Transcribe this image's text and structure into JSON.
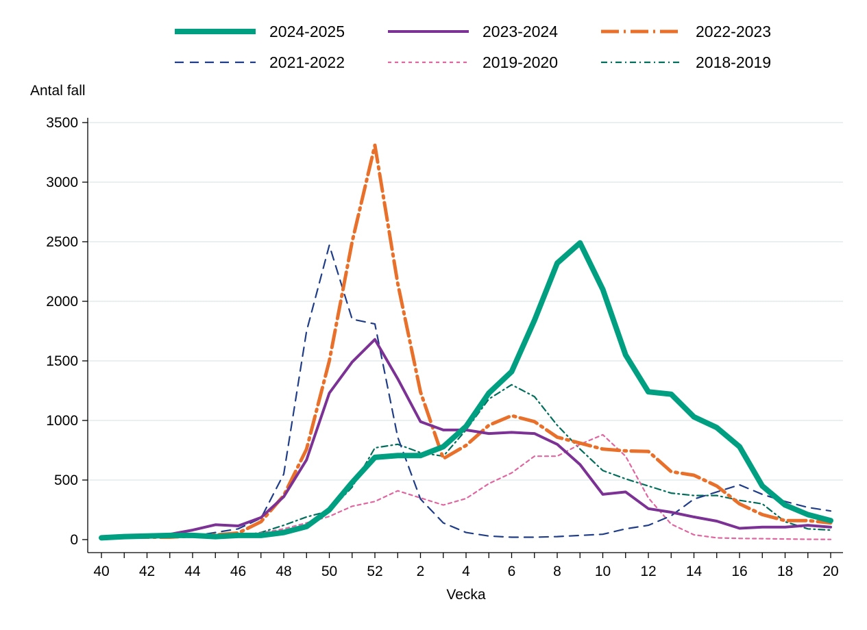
{
  "chart_data": {
    "type": "line",
    "xlabel": "Vecka",
    "ylabel": "Antal fall",
    "ylim": [
      0,
      3500
    ],
    "y_ticks": [
      0,
      500,
      1000,
      1500,
      2000,
      2500,
      3000,
      3500
    ],
    "grid": "horizontal",
    "legend_position": "top",
    "categories": [
      "40",
      "41",
      "42",
      "43",
      "44",
      "45",
      "46",
      "47",
      "48",
      "49",
      "50",
      "51",
      "52",
      "1",
      "2",
      "3",
      "4",
      "5",
      "6",
      "7",
      "8",
      "9",
      "10",
      "11",
      "12",
      "13",
      "14",
      "15",
      "16",
      "17",
      "18",
      "19",
      "20"
    ],
    "x_tick_labels": [
      "40",
      "42",
      "44",
      "46",
      "48",
      "50",
      "52",
      "2",
      "4",
      "6",
      "8",
      "10",
      "12",
      "14",
      "16",
      "18",
      "20"
    ],
    "series": [
      {
        "name": "2024-2025",
        "color": "#009f81",
        "style": "solid-thick",
        "values": [
          15,
          25,
          30,
          35,
          35,
          25,
          35,
          35,
          60,
          110,
          250,
          480,
          690,
          705,
          705,
          780,
          950,
          1230,
          1410,
          1840,
          2320,
          2490,
          2100,
          1550,
          1240,
          1220,
          1030,
          940,
          780,
          450,
          290,
          210,
          160
        ]
      },
      {
        "name": "2023-2024",
        "color": "#7b3294",
        "style": "solid",
        "values": [
          15,
          25,
          30,
          45,
          80,
          125,
          115,
          185,
          360,
          670,
          1230,
          1490,
          1680,
          1350,
          990,
          920,
          920,
          890,
          900,
          890,
          800,
          630,
          380,
          400,
          260,
          230,
          190,
          155,
          95,
          105,
          105,
          120,
          105
        ]
      },
      {
        "name": "2022-2023",
        "color": "#e8702a",
        "style": "longdash-dot",
        "values": [
          15,
          20,
          20,
          20,
          30,
          40,
          55,
          150,
          370,
          760,
          1500,
          2500,
          3310,
          2150,
          1240,
          680,
          790,
          960,
          1040,
          990,
          860,
          810,
          760,
          745,
          740,
          570,
          540,
          450,
          300,
          210,
          160,
          160,
          140
        ]
      },
      {
        "name": "2021-2022",
        "color": "#1f3c88",
        "style": "dash",
        "values": [
          10,
          15,
          15,
          20,
          30,
          60,
          90,
          180,
          550,
          1750,
          2470,
          1850,
          1810,
          860,
          340,
          140,
          60,
          30,
          20,
          20,
          25,
          35,
          45,
          90,
          120,
          200,
          340,
          400,
          460,
          380,
          320,
          270,
          240
        ]
      },
      {
        "name": "2019-2020",
        "color": "#e0669f",
        "style": "dot",
        "values": [
          15,
          20,
          20,
          20,
          25,
          30,
          40,
          55,
          90,
          140,
          195,
          280,
          320,
          410,
          350,
          290,
          345,
          470,
          560,
          700,
          700,
          800,
          880,
          700,
          350,
          130,
          40,
          15,
          10,
          8,
          5,
          3,
          2
        ]
      },
      {
        "name": "2018-2019",
        "color": "#006e5a",
        "style": "dashdot",
        "values": [
          15,
          15,
          20,
          20,
          20,
          25,
          30,
          60,
          120,
          190,
          240,
          440,
          770,
          800,
          730,
          700,
          920,
          1180,
          1300,
          1200,
          960,
          760,
          580,
          510,
          450,
          390,
          370,
          370,
          330,
          300,
          150,
          90,
          80
        ]
      }
    ]
  }
}
